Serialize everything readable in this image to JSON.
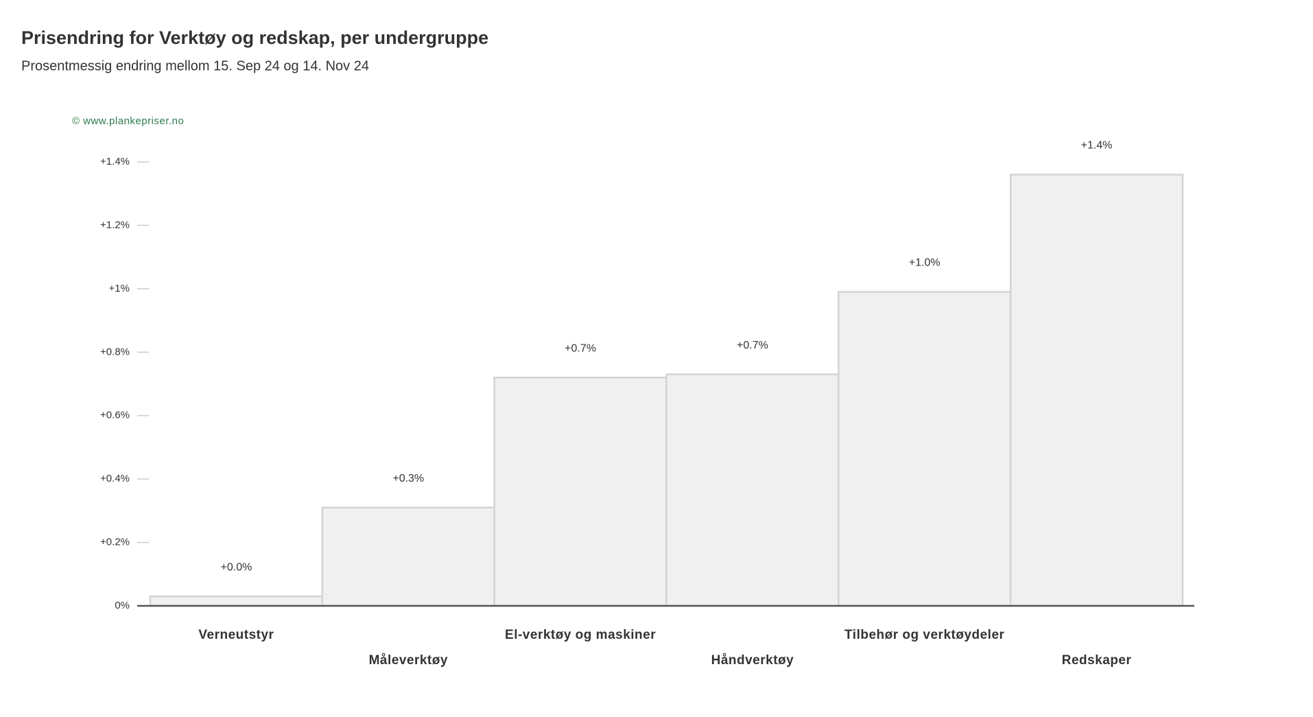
{
  "chart_data": {
    "type": "bar",
    "title": "Prisendring for Verktøy og redskap, per undergruppe",
    "subtitle": "Prosentmessig endring mellom 15. Sep 24 og 14. Nov 24",
    "watermark": "© www.plankepriser.no",
    "categories": [
      "Verneutstyr",
      "Måleverktøy",
      "El-verktøy og maskiner",
      "Håndverktøy",
      "Tilbehør og verktøydeler",
      "Redskaper"
    ],
    "values": [
      0.03,
      0.31,
      0.72,
      0.73,
      0.99,
      1.36
    ],
    "value_labels": [
      "+0.0%",
      "+0.3%",
      "+0.7%",
      "+0.7%",
      "+1.0%",
      "+1.4%"
    ],
    "color": "#f0f0f0",
    "ylim": [
      0,
      1.4
    ],
    "yticks": [
      {
        "value": 0,
        "label": "0%"
      },
      {
        "value": 0.2,
        "label": "+0.2%"
      },
      {
        "value": 0.4,
        "label": "+0.4%"
      },
      {
        "value": 0.6,
        "label": "+0.6%"
      },
      {
        "value": 0.8,
        "label": "+0.8%"
      },
      {
        "value": 1,
        "label": "+1%"
      },
      {
        "value": 1.2,
        "label": "+1.2%"
      },
      {
        "value": 1.4,
        "label": "+1.4%"
      }
    ]
  }
}
